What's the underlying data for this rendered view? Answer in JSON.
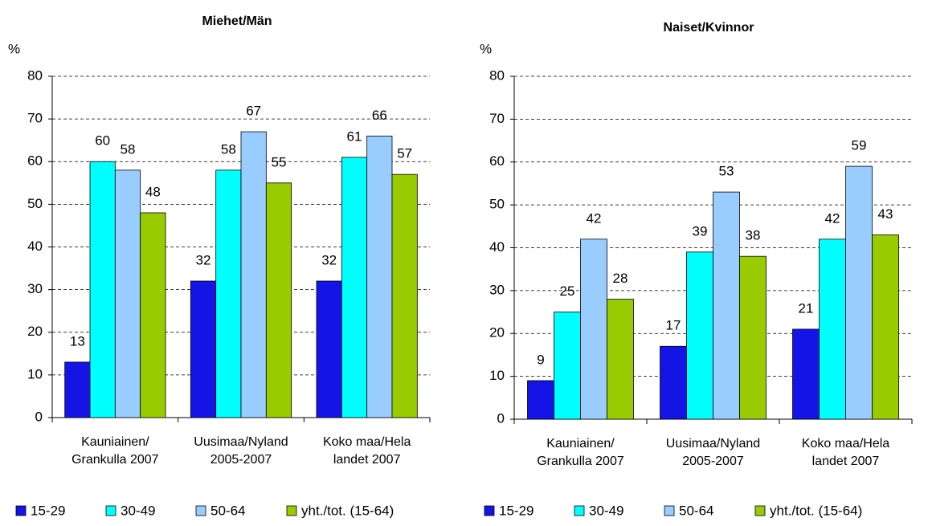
{
  "chart_data": [
    {
      "type": "bar",
      "title": "Miehet/Män",
      "ylabel": "%",
      "categories": [
        "Kauniainen/\nGrankulla 2007",
        "Uusimaa/Nyland\n2005-2007",
        "Koko maa/Hela\nlandet  2007"
      ],
      "series": [
        {
          "name": "15-29",
          "color": "#1414e6",
          "values": [
            13,
            32,
            32
          ]
        },
        {
          "name": "30-49",
          "color": "#00ffff",
          "values": [
            60,
            58,
            61
          ]
        },
        {
          "name": "50-64",
          "color": "#99ccff",
          "values": [
            58,
            67,
            66
          ]
        },
        {
          "name": "yht./tot. (15-64)",
          "color": "#99cc00",
          "values": [
            48,
            55,
            57
          ]
        }
      ],
      "ylim": [
        0,
        80
      ],
      "yticks": [
        0,
        10,
        20,
        30,
        40,
        50,
        60,
        70,
        80
      ],
      "grid": true,
      "legend": "bottom"
    },
    {
      "type": "bar",
      "title": "Naiset/Kvinnor",
      "ylabel": "%",
      "categories": [
        "Kauniainen/\nGrankulla 2007",
        "Uusimaa/Nyland\n2005-2007",
        "Koko maa/Hela\nlandet  2007"
      ],
      "series": [
        {
          "name": "15-29",
          "color": "#1414e6",
          "values": [
            9,
            17,
            21
          ]
        },
        {
          "name": "30-49",
          "color": "#00ffff",
          "values": [
            25,
            39,
            42
          ]
        },
        {
          "name": "50-64",
          "color": "#99ccff",
          "values": [
            42,
            53,
            59
          ]
        },
        {
          "name": "yht./tot. (15-64)",
          "color": "#99cc00",
          "values": [
            28,
            38,
            43
          ]
        }
      ],
      "ylim": [
        0,
        80
      ],
      "yticks": [
        0,
        10,
        20,
        30,
        40,
        50,
        60,
        70,
        80
      ],
      "grid": true,
      "legend": "bottom"
    }
  ]
}
